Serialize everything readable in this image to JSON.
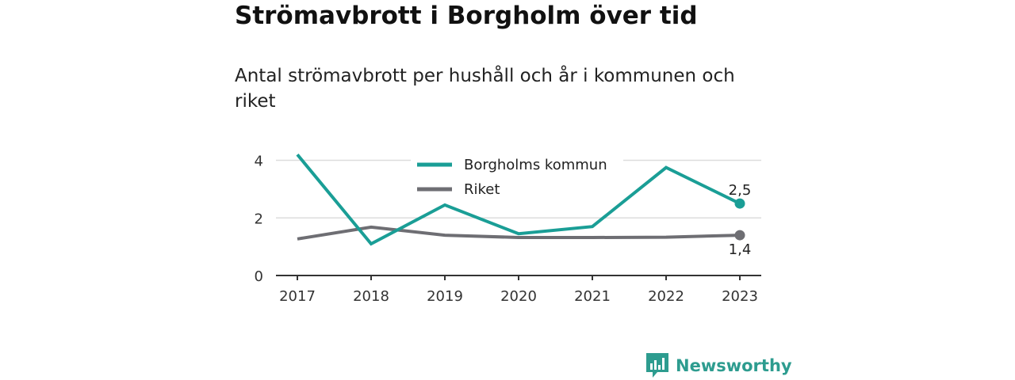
{
  "header": {
    "title": "Strömavbrott i Borgholm över tid",
    "subtitle": "Antal strömavbrott per hushåll och år i kommunen och riket"
  },
  "brand": {
    "name": "Newsworthy",
    "icon": "newsworthy-logo-icon",
    "color": "#2d9c8f"
  },
  "chart_data": {
    "type": "line",
    "x": [
      "2017",
      "2018",
      "2019",
      "2020",
      "2021",
      "2022",
      "2023"
    ],
    "y_ticks": [
      "0",
      "2",
      "4"
    ],
    "ylim": [
      0,
      4.4
    ],
    "grid": true,
    "legend_placement": "top-center",
    "series": [
      {
        "name": "Borgholms kommun",
        "color": "#1a9e96",
        "values": [
          4.2,
          1.1,
          2.45,
          1.45,
          1.7,
          3.75,
          2.5
        ],
        "end_label": "2,5"
      },
      {
        "name": "Riket",
        "color": "#6e6e73",
        "values": [
          1.27,
          1.68,
          1.4,
          1.32,
          1.32,
          1.33,
          1.4
        ],
        "end_label": "1,4"
      }
    ]
  }
}
